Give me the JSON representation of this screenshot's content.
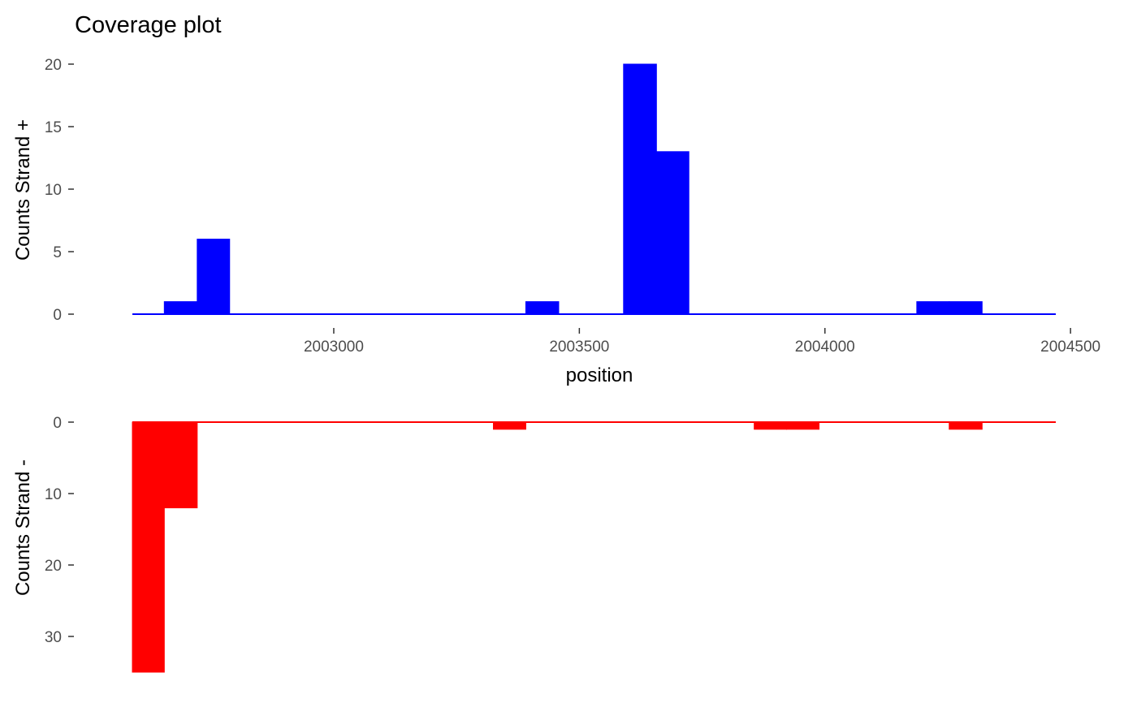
{
  "chart_data": [
    {
      "type": "bar",
      "title": "Coverage plot",
      "xlabel": "position",
      "ylabel": "Counts Strand +",
      "xlim": [
        2002590,
        2004470
      ],
      "ylim": [
        0,
        20
      ],
      "x_ticks": [
        2003000,
        2003500,
        2004000,
        2004500
      ],
      "y_ticks": [
        0,
        5,
        10,
        15,
        20
      ],
      "bin_width": 66,
      "color": "#0000FF",
      "grid": false,
      "baseline_range": [
        2002590,
        2004470
      ],
      "bars": [
        {
          "x_start": 2002655,
          "x_end": 2002722,
          "value": 1
        },
        {
          "x_start": 2002722,
          "x_end": 2002788,
          "value": 6
        },
        {
          "x_start": 2003391,
          "x_end": 2003458,
          "value": 1
        },
        {
          "x_start": 2003590,
          "x_end": 2003657,
          "value": 20
        },
        {
          "x_start": 2003657,
          "x_end": 2003723,
          "value": 13
        },
        {
          "x_start": 2004187,
          "x_end": 2004253,
          "value": 1
        },
        {
          "x_start": 2004253,
          "x_end": 2004320,
          "value": 1
        }
      ]
    },
    {
      "type": "bar",
      "ylabel": "Counts Strand -",
      "xlim": [
        2002590,
        2004470
      ],
      "ylim": [
        0,
        35
      ],
      "y_reversed": true,
      "y_ticks": [
        0,
        10,
        20,
        30
      ],
      "bin_width": 66,
      "color": "#FF0000",
      "grid": false,
      "baseline_range": [
        2002590,
        2004470
      ],
      "bars": [
        {
          "x_start": 2002590,
          "x_end": 2002655,
          "value": 35
        },
        {
          "x_start": 2002655,
          "x_end": 2002722,
          "value": 12
        },
        {
          "x_start": 2003325,
          "x_end": 2003391,
          "value": 1
        },
        {
          "x_start": 2003856,
          "x_end": 2003922,
          "value": 1
        },
        {
          "x_start": 2003922,
          "x_end": 2003988,
          "value": 1
        },
        {
          "x_start": 2004253,
          "x_end": 2004320,
          "value": 1
        }
      ]
    }
  ]
}
